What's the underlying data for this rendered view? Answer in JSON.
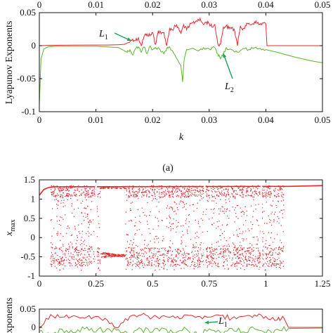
{
  "figure": {
    "panel_a_caption": "(a)"
  },
  "chart_data": [
    {
      "type": "line",
      "panel": "a",
      "xlabel": "k",
      "ylabel": "Lyapunov Exponents",
      "xlim": [
        0,
        0.05
      ],
      "ylim": [
        -0.1,
        0.05
      ],
      "x_ticks": [
        "0",
        "0.01",
        "0.02",
        "0.03",
        "0.04",
        "0.05"
      ],
      "x_ticks_top": [
        "0",
        "0.01",
        "0.02",
        "0.03",
        "0.04",
        "0.05"
      ],
      "y_ticks": [
        "0.05",
        "0",
        "-0.05",
        "-0.1"
      ],
      "grid": false,
      "annotations": [
        {
          "text": "L1",
          "base": "L",
          "sub": "1",
          "points_to": [
            0.0162,
            0.0075
          ]
        },
        {
          "text": "L2",
          "base": "L",
          "sub": "2",
          "points_to": [
            0.0325,
            -0.012
          ]
        }
      ],
      "series": [
        {
          "name": "L1",
          "color": "#e8272b",
          "x": [
            0,
            0.002,
            0.006,
            0.01,
            0.012,
            0.014,
            0.015,
            0.0158,
            0.0165,
            0.017,
            0.0175,
            0.018,
            0.0185,
            0.019,
            0.0195,
            0.02,
            0.0205,
            0.021,
            0.0215,
            0.022,
            0.0225,
            0.023,
            0.0235,
            0.024,
            0.0245,
            0.025,
            0.0255,
            0.026,
            0.0265,
            0.027,
            0.0275,
            0.028,
            0.0285,
            0.029,
            0.0295,
            0.03,
            0.0305,
            0.031,
            0.0315,
            0.032,
            0.0325,
            0.033,
            0.0335,
            0.034,
            0.0345,
            0.035,
            0.0355,
            0.036,
            0.0365,
            0.037,
            0.0375,
            0.038,
            0.0385,
            0.039,
            0.0395,
            0.04,
            0.0402,
            0.045,
            0.05
          ],
          "values": [
            0,
            0.0005,
            0.0008,
            0.001,
            0.001,
            0.0015,
            0.002,
            0.005,
            0.01,
            0.008,
            0.012,
            0.0,
            0.014,
            0.018,
            0.015,
            0.02,
            0.002,
            0.022,
            0.018,
            0.02,
            0.0,
            0.026,
            0.024,
            0.03,
            0.028,
            0.018,
            0.032,
            0.024,
            0.03,
            0.034,
            0.036,
            0.04,
            0.038,
            0.032,
            0.036,
            0.034,
            0.028,
            0.032,
            0.003,
            0.002,
            0.028,
            0.03,
            0.026,
            0.028,
            0.022,
            0.0,
            0.03,
            0.026,
            0.03,
            0.034,
            0.032,
            0.036,
            0.034,
            0.032,
            0.034,
            0.033,
            0.0,
            0.0,
            0.0
          ]
        },
        {
          "name": "L2",
          "color": "#5ab52f",
          "x": [
            0,
            0.0003,
            0.0008,
            0.0015,
            0.003,
            0.006,
            0.01,
            0.014,
            0.0155,
            0.016,
            0.0165,
            0.017,
            0.0175,
            0.018,
            0.0185,
            0.019,
            0.0195,
            0.02,
            0.021,
            0.022,
            0.0225,
            0.023,
            0.024,
            0.025,
            0.0253,
            0.0256,
            0.026,
            0.027,
            0.028,
            0.029,
            0.03,
            0.031,
            0.0315,
            0.032,
            0.0325,
            0.033,
            0.034,
            0.035,
            0.036,
            0.037,
            0.038,
            0.039,
            0.04,
            0.042,
            0.045,
            0.048,
            0.05
          ],
          "values": [
            -0.09,
            -0.02,
            -0.005,
            -0.002,
            -0.001,
            -0.001,
            -0.001,
            -0.003,
            -0.01,
            -0.006,
            -0.014,
            -0.004,
            -0.002,
            -0.01,
            -0.002,
            -0.012,
            -0.001,
            -0.006,
            -0.003,
            -0.012,
            -0.004,
            -0.002,
            -0.015,
            -0.03,
            -0.055,
            -0.02,
            -0.006,
            -0.004,
            -0.008,
            -0.003,
            -0.005,
            -0.003,
            -0.012,
            -0.02,
            -0.012,
            -0.003,
            -0.006,
            -0.01,
            -0.004,
            -0.006,
            -0.003,
            -0.004,
            -0.006,
            -0.01,
            -0.017,
            -0.023,
            -0.026
          ]
        }
      ]
    },
    {
      "type": "scatter",
      "panel": "b",
      "ylabel": "x_max",
      "ylabel_base": "x",
      "ylabel_sub": "max",
      "xlim": [
        0,
        1.25
      ],
      "ylim": [
        -1,
        1.5
      ],
      "x_ticks": [
        "0",
        "0.25",
        "0.5",
        "0.75",
        "1",
        "1.25"
      ],
      "y_ticks": [
        "1.5",
        "1",
        "0.5",
        "0",
        "-0.5",
        "-1"
      ],
      "color": "#e8272b",
      "periodic_window": [
        0.27,
        0.38
      ],
      "chaotic_band_upper": [
        1.05,
        1.35
      ],
      "chaotic_band_lower": [
        -0.75,
        -0.25
      ],
      "chaotic_region": [
        0.05,
        1.08
      ],
      "boundary_curve": {
        "x": [
          0,
          0.02,
          0.04,
          0.06,
          1.1,
          1.25
        ],
        "values": [
          1.1,
          1.25,
          1.3,
          1.32,
          1.33,
          1.35
        ]
      }
    },
    {
      "type": "line",
      "panel": "c",
      "ylabel": "Lyapunov Exponents",
      "ylabel_visible": "xponents",
      "xlim": [
        0,
        1.25
      ],
      "ylim": [
        -0.05,
        0.05
      ],
      "y_ticks": [
        "0.05",
        "0"
      ],
      "annotations": [
        {
          "text": "L1",
          "base": "L",
          "sub": "1",
          "points_to": [
            0.7,
            0.005
          ]
        }
      ],
      "series": [
        {
          "name": "L1",
          "color": "#e8272b",
          "x": [
            0,
            0.05,
            0.1,
            0.15,
            0.2,
            0.25,
            0.3,
            0.35,
            0.4,
            0.45,
            0.5,
            0.55,
            0.6,
            0.65,
            0.7,
            0.75,
            0.8,
            0.85,
            0.9,
            0.95,
            1.0,
            1.05,
            1.08,
            1.1,
            1.25
          ],
          "values": [
            0.0,
            0.035,
            0.028,
            0.032,
            0.025,
            0.03,
            0.02,
            0.0,
            0.03,
            0.034,
            0.028,
            0.032,
            0.026,
            0.034,
            0.03,
            0.028,
            0.032,
            0.025,
            0.03,
            0.034,
            0.03,
            0.02,
            0.025,
            0.0,
            0.0
          ]
        },
        {
          "name": "L2",
          "color": "#5ab52f",
          "x": [
            0,
            0.05,
            0.1,
            0.15,
            0.2,
            0.25,
            0.3,
            0.35,
            0.4,
            0.45,
            0.5,
            0.55,
            0.6,
            0.65,
            0.7,
            0.75,
            0.8,
            0.85,
            0.9,
            0.95,
            1.0,
            1.05,
            1.1,
            1.25
          ],
          "values": [
            -0.01,
            -0.02,
            -0.005,
            -0.015,
            -0.004,
            -0.012,
            -0.003,
            -0.006,
            -0.018,
            -0.004,
            -0.012,
            -0.003,
            -0.016,
            -0.005,
            -0.02,
            -0.004,
            -0.014,
            -0.003,
            -0.012,
            -0.004,
            -0.016,
            -0.005,
            -0.003,
            -0.002
          ]
        }
      ]
    }
  ]
}
